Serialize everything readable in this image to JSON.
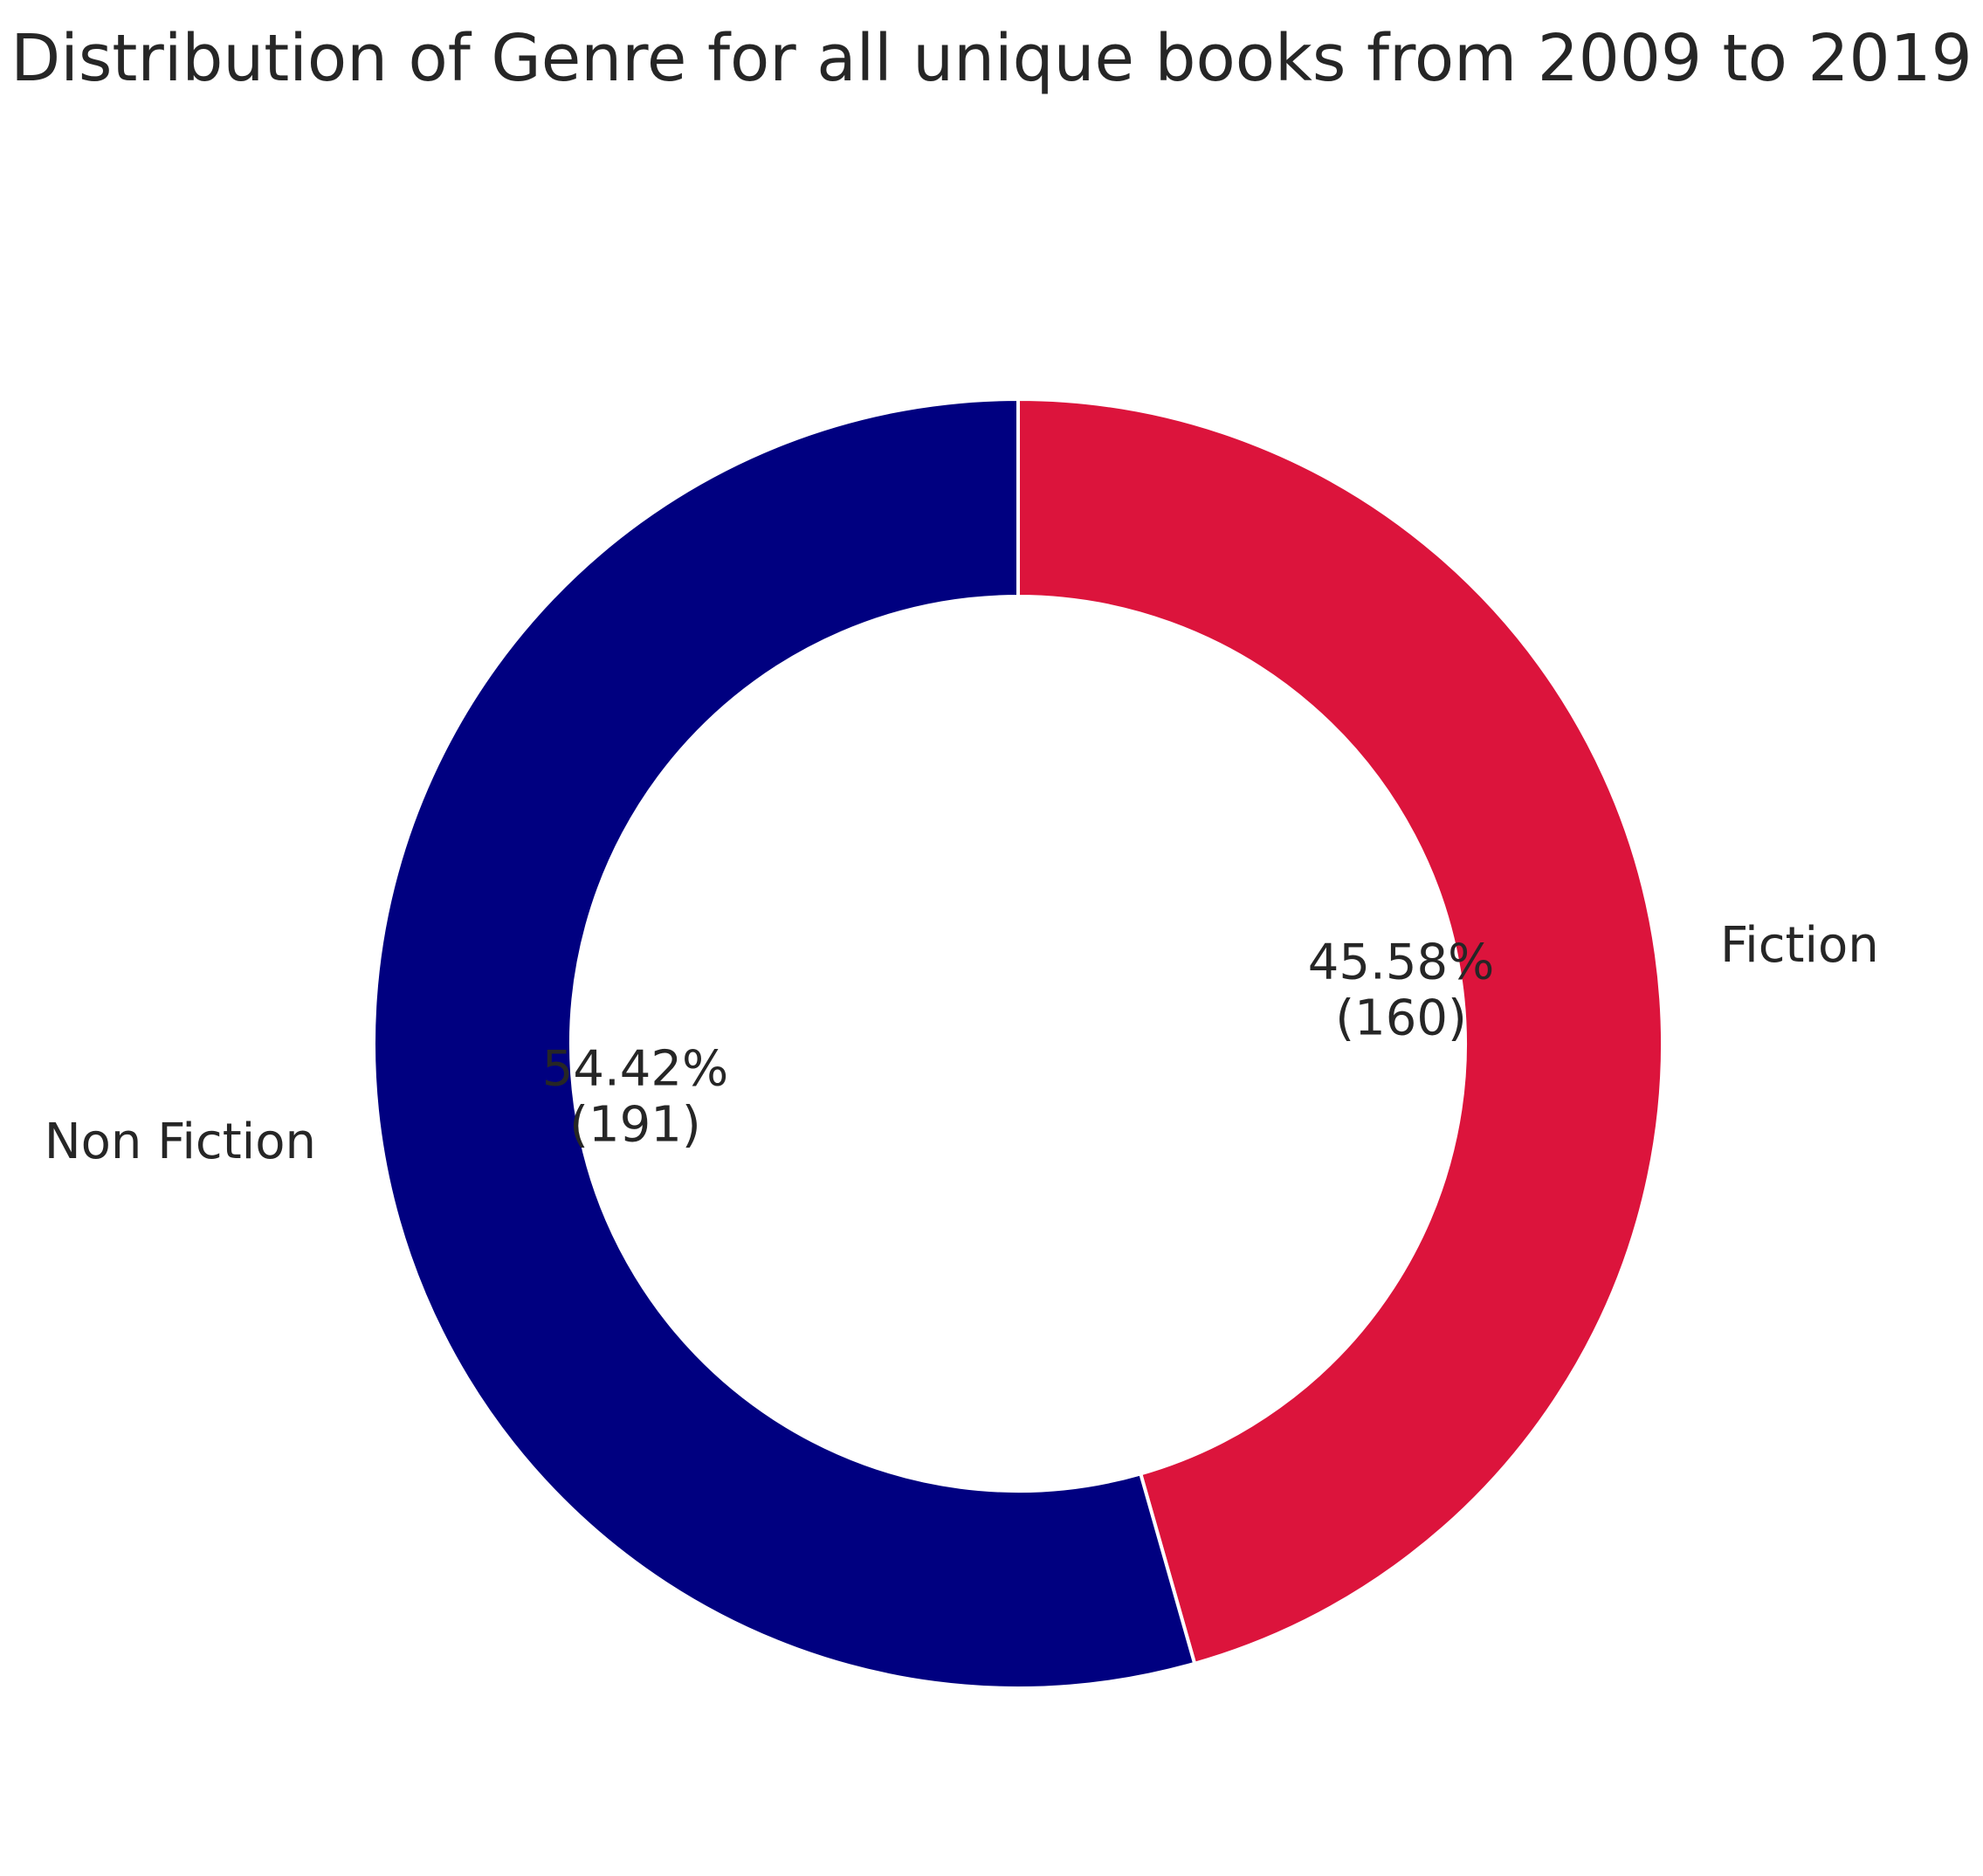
{
  "chart_data": {
    "type": "pie",
    "title": "Distribution of Genre for all unique books from 2009 to 2019",
    "donut": true,
    "start_angle_deg": 90,
    "direction": "clockwise",
    "slices": [
      {
        "label": "Fiction",
        "value": 160,
        "percent_label": "45.58%",
        "count_label": "(160)",
        "color": "#DC143C"
      },
      {
        "label": "Non Fiction",
        "value": 191,
        "percent_label": "54.42%",
        "count_label": "(191)",
        "color": "#000080"
      }
    ],
    "edge_color": "#FFFFFF",
    "text_color": "#262626"
  }
}
